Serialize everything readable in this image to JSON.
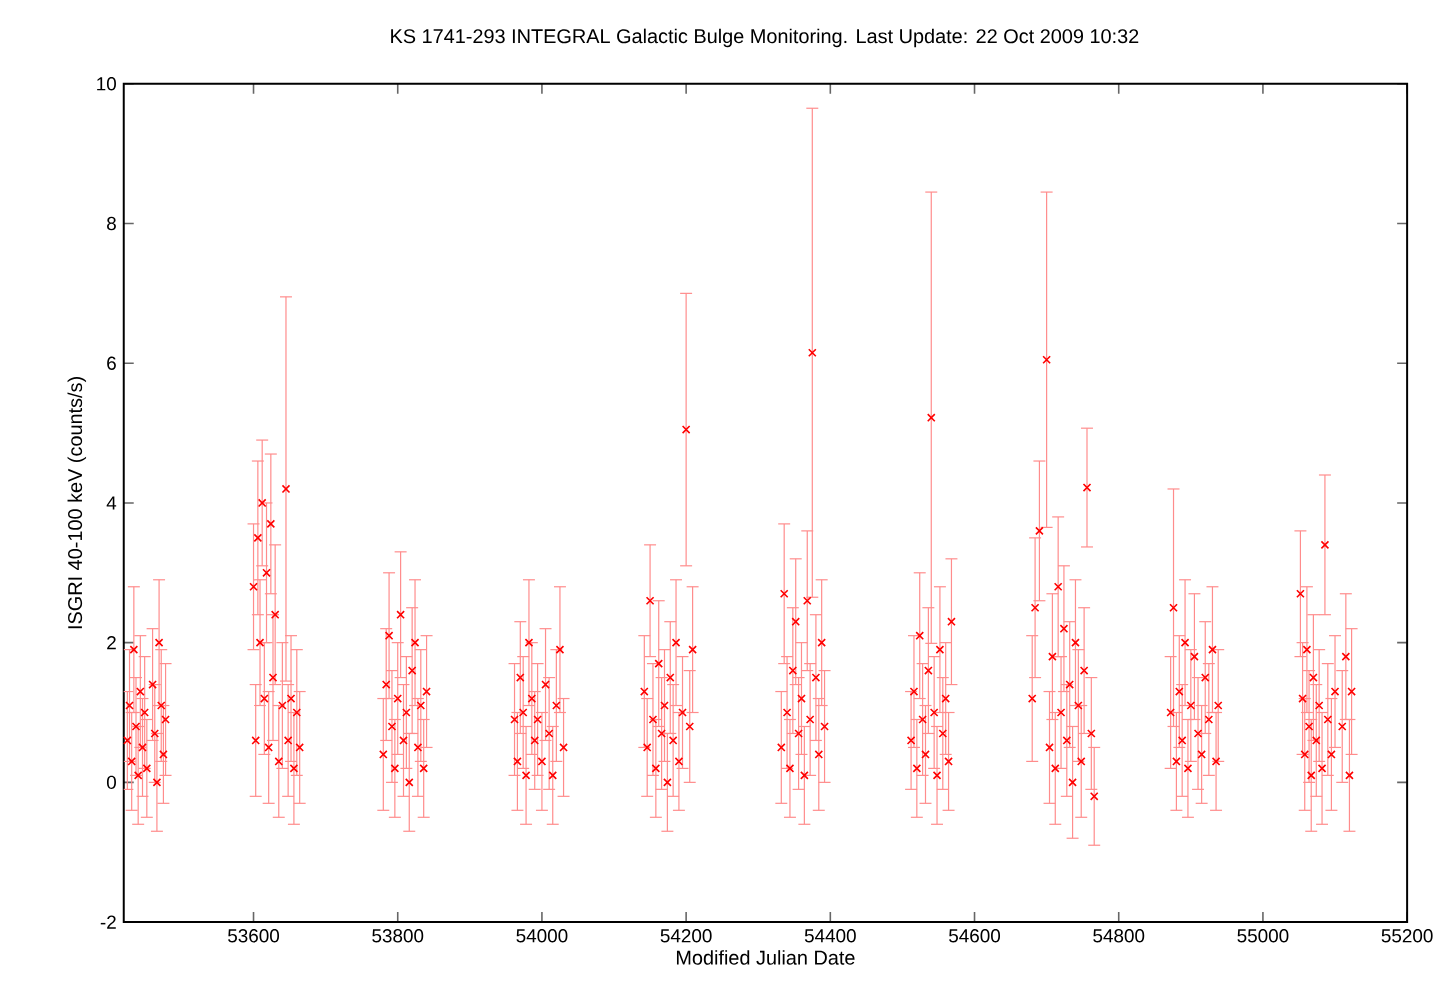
{
  "chart_data": {
    "type": "scatter",
    "title": "KS 1741-293   INTEGRAL Galactic Bulge Monitoring.  Last Update: 22 Oct 2009 10:32",
    "xlabel": "Modified Julian Date",
    "ylabel": "ISGRI 40-100 keV (counts/s)",
    "xlim": [
      53420,
      55200
    ],
    "xticks": [
      53600,
      53800,
      54000,
      54200,
      54400,
      54600,
      54800,
      55000,
      55200
    ],
    "ylim": [
      -2,
      10
    ],
    "yticks": [
      -2,
      0,
      2,
      4,
      6,
      8,
      10
    ],
    "marker": "cross",
    "series": [
      {
        "color": "#ff0000",
        "x": [
          53425,
          53428,
          53431,
          53434,
          53437,
          53440,
          53443,
          53446,
          53449,
          53452,
          53460,
          53463,
          53466,
          53469,
          53472,
          53475,
          53478,
          53600,
          53603,
          53606,
          53609,
          53612,
          53615,
          53618,
          53621,
          53624,
          53627,
          53630,
          53635,
          53640,
          53645,
          53648,
          53652,
          53656,
          53660,
          53664,
          53780,
          53784,
          53788,
          53792,
          53796,
          53800,
          53804,
          53808,
          53812,
          53816,
          53820,
          53824,
          53828,
          53832,
          53836,
          53840,
          53962,
          53966,
          53970,
          53974,
          53978,
          53982,
          53986,
          53990,
          53994,
          54000,
          54005,
          54010,
          54015,
          54020,
          54025,
          54030,
          54142,
          54146,
          54150,
          54154,
          54158,
          54162,
          54166,
          54170,
          54174,
          54178,
          54182,
          54186,
          54190,
          54195,
          54200,
          54205,
          54209,
          54332,
          54336,
          54340,
          54344,
          54348,
          54352,
          54356,
          54360,
          54364,
          54368,
          54372,
          54375,
          54380,
          54384,
          54388,
          54392,
          54512,
          54516,
          54520,
          54524,
          54528,
          54532,
          54536,
          54540,
          54544,
          54548,
          54552,
          54556,
          54560,
          54564,
          54568,
          54680,
          54684,
          54690,
          54700,
          54704,
          54708,
          54712,
          54716,
          54720,
          54724,
          54728,
          54732,
          54736,
          54740,
          54744,
          54748,
          54752,
          54756,
          54762,
          54766,
          54872,
          54876,
          54880,
          54884,
          54888,
          54892,
          54896,
          54900,
          54905,
          54910,
          54915,
          54920,
          54925,
          54930,
          54935,
          54938,
          55052,
          55055,
          55058,
          55061,
          55064,
          55067,
          55070,
          55074,
          55078,
          55082,
          55086,
          55090,
          55095,
          55100,
          55110,
          55115,
          55120,
          55123
        ],
        "values": [
          0.6,
          1.1,
          0.3,
          1.9,
          0.8,
          0.1,
          1.3,
          0.5,
          1.0,
          0.2,
          1.4,
          0.7,
          0.0,
          2.0,
          1.1,
          0.4,
          0.9,
          2.8,
          0.6,
          3.5,
          2.0,
          4.0,
          1.2,
          3.0,
          0.5,
          3.7,
          1.5,
          2.4,
          0.3,
          1.1,
          4.2,
          0.6,
          1.2,
          0.2,
          1.0,
          0.5,
          0.4,
          1.4,
          2.1,
          0.8,
          0.2,
          1.2,
          2.4,
          0.6,
          1.0,
          0.0,
          1.6,
          2.0,
          0.5,
          1.1,
          0.2,
          1.3,
          0.9,
          0.3,
          1.5,
          1.0,
          0.1,
          2.0,
          1.2,
          0.6,
          0.9,
          0.3,
          1.4,
          0.7,
          0.1,
          1.1,
          1.9,
          0.5,
          1.3,
          0.5,
          2.6,
          0.9,
          0.2,
          1.7,
          0.7,
          1.1,
          0.0,
          1.5,
          0.6,
          2.0,
          0.3,
          1.0,
          5.05,
          0.8,
          1.9,
          0.5,
          2.7,
          1.0,
          0.2,
          1.6,
          2.3,
          0.7,
          1.2,
          0.1,
          2.6,
          0.9,
          6.15,
          1.5,
          0.4,
          2.0,
          0.8,
          0.6,
          1.3,
          0.2,
          2.1,
          0.9,
          0.4,
          1.6,
          5.22,
          1.0,
          0.1,
          1.9,
          0.7,
          1.2,
          0.3,
          2.3,
          1.2,
          2.5,
          3.6,
          6.05,
          0.5,
          1.8,
          0.2,
          2.8,
          1.0,
          2.2,
          0.6,
          1.4,
          0.0,
          2.0,
          1.1,
          0.3,
          1.6,
          4.22,
          0.7,
          -0.2,
          1.0,
          2.5,
          0.3,
          1.3,
          0.6,
          2.0,
          0.2,
          1.1,
          1.8,
          0.7,
          0.4,
          1.5,
          0.9,
          1.9,
          0.3,
          1.1,
          2.7,
          1.2,
          0.4,
          1.9,
          0.8,
          0.1,
          1.5,
          0.6,
          1.1,
          0.2,
          3.4,
          0.9,
          0.4,
          1.3,
          0.8,
          1.8,
          0.1,
          1.3
        ],
        "errors": [
          0.7,
          0.8,
          0.7,
          0.9,
          0.7,
          0.7,
          0.8,
          0.7,
          0.8,
          0.7,
          0.8,
          0.7,
          0.7,
          0.9,
          0.8,
          0.7,
          0.8,
          0.9,
          0.8,
          1.1,
          0.9,
          0.9,
          0.8,
          1.0,
          0.8,
          1.0,
          0.9,
          1.0,
          0.8,
          0.9,
          2.75,
          0.8,
          0.9,
          0.8,
          0.9,
          0.8,
          0.8,
          0.8,
          0.9,
          0.8,
          0.7,
          0.8,
          0.9,
          0.8,
          0.8,
          0.7,
          0.9,
          0.9,
          0.7,
          0.8,
          0.7,
          0.8,
          0.8,
          0.7,
          0.8,
          0.8,
          0.7,
          0.9,
          0.8,
          0.7,
          0.8,
          0.7,
          0.8,
          0.8,
          0.7,
          0.8,
          0.9,
          0.7,
          0.8,
          0.7,
          0.8,
          0.8,
          0.7,
          0.9,
          0.8,
          0.8,
          0.7,
          0.8,
          0.8,
          0.9,
          0.7,
          0.8,
          1.95,
          0.8,
          0.9,
          0.8,
          1.0,
          0.8,
          0.7,
          0.9,
          0.9,
          0.8,
          0.8,
          0.7,
          1.0,
          0.8,
          3.5,
          0.9,
          0.8,
          0.9,
          0.8,
          0.7,
          0.8,
          0.7,
          0.9,
          0.8,
          0.7,
          0.9,
          3.23,
          0.8,
          0.7,
          0.9,
          0.8,
          0.8,
          0.7,
          0.9,
          0.9,
          1.0,
          1.0,
          2.4,
          0.8,
          0.9,
          0.8,
          1.0,
          0.8,
          0.9,
          0.8,
          0.9,
          0.8,
          0.9,
          0.8,
          0.8,
          0.9,
          0.85,
          0.8,
          0.7,
          0.8,
          1.7,
          0.7,
          0.8,
          0.8,
          0.9,
          0.7,
          0.8,
          0.9,
          0.8,
          0.7,
          0.8,
          0.8,
          0.9,
          0.7,
          0.8,
          0.9,
          0.8,
          0.8,
          0.9,
          0.8,
          0.8,
          0.9,
          0.8,
          0.8,
          0.8,
          1.0,
          0.8,
          0.8,
          0.8,
          0.8,
          0.9,
          0.8,
          0.9
        ]
      }
    ]
  }
}
